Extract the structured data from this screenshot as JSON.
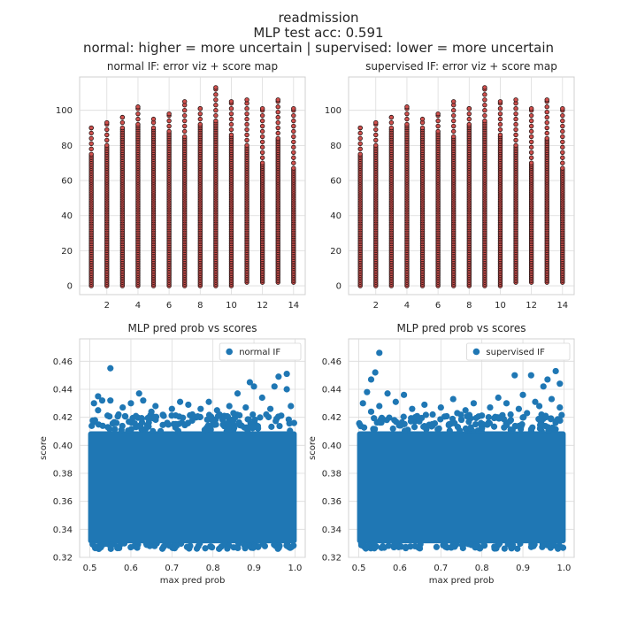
{
  "figure": {
    "suptitle_lines": [
      "readmission",
      "MLP test acc: 0.591",
      "normal: higher = more uncertain | supervised: lower = more uncertain"
    ]
  },
  "colors": {
    "scatter_fill": "#d0504d",
    "scatter_edge": "#2a1414",
    "blue": "#1f77b4"
  },
  "chart_data": [
    {
      "type": "scatter",
      "title": "normal IF: error viz + score map",
      "xlabel": "",
      "ylabel": "",
      "xlim": [
        0.25,
        14.75
      ],
      "ylim": [
        -5,
        119
      ],
      "xticks": [
        2,
        4,
        6,
        8,
        10,
        12,
        14
      ],
      "yticks": [
        0,
        20,
        40,
        60,
        80,
        100
      ],
      "grid": true,
      "columns": [
        {
          "x": 1,
          "y_min": 0,
          "y_dense_max": 75,
          "y_max": 90
        },
        {
          "x": 2,
          "y_min": 0,
          "y_dense_max": 80,
          "y_max": 93
        },
        {
          "x": 3,
          "y_min": 0,
          "y_dense_max": 90,
          "y_max": 96
        },
        {
          "x": 4,
          "y_min": 0,
          "y_dense_max": 92,
          "y_max": 102
        },
        {
          "x": 5,
          "y_min": 0,
          "y_dense_max": 90,
          "y_max": 95
        },
        {
          "x": 6,
          "y_min": 0,
          "y_dense_max": 88,
          "y_max": 98
        },
        {
          "x": 7,
          "y_min": 0,
          "y_dense_max": 85,
          "y_max": 105
        },
        {
          "x": 8,
          "y_min": 0,
          "y_dense_max": 92,
          "y_max": 101
        },
        {
          "x": 9,
          "y_min": 0,
          "y_dense_max": 94,
          "y_max": 113
        },
        {
          "x": 10,
          "y_min": 0,
          "y_dense_max": 86,
          "y_max": 105
        },
        {
          "x": 11,
          "y_min": 2,
          "y_dense_max": 80,
          "y_max": 106
        },
        {
          "x": 12,
          "y_min": 2,
          "y_dense_max": 70,
          "y_max": 101
        },
        {
          "x": 13,
          "y_min": 2,
          "y_dense_max": 84,
          "y_max": 106
        },
        {
          "x": 14,
          "y_min": 2,
          "y_dense_max": 67,
          "y_max": 101
        }
      ]
    },
    {
      "type": "scatter",
      "title": "supervised IF: error viz + score map",
      "xlabel": "",
      "ylabel": "",
      "xlim": [
        0.25,
        14.75
      ],
      "ylim": [
        -5,
        119
      ],
      "xticks": [
        2,
        4,
        6,
        8,
        10,
        12,
        14
      ],
      "yticks": [
        0,
        20,
        40,
        60,
        80,
        100
      ],
      "grid": true,
      "columns": [
        {
          "x": 1,
          "y_min": 0,
          "y_dense_max": 75,
          "y_max": 90
        },
        {
          "x": 2,
          "y_min": 0,
          "y_dense_max": 80,
          "y_max": 93
        },
        {
          "x": 3,
          "y_min": 0,
          "y_dense_max": 90,
          "y_max": 96
        },
        {
          "x": 4,
          "y_min": 0,
          "y_dense_max": 92,
          "y_max": 102
        },
        {
          "x": 5,
          "y_min": 0,
          "y_dense_max": 90,
          "y_max": 95
        },
        {
          "x": 6,
          "y_min": 0,
          "y_dense_max": 88,
          "y_max": 98
        },
        {
          "x": 7,
          "y_min": 0,
          "y_dense_max": 85,
          "y_max": 105
        },
        {
          "x": 8,
          "y_min": 0,
          "y_dense_max": 92,
          "y_max": 101
        },
        {
          "x": 9,
          "y_min": 0,
          "y_dense_max": 94,
          "y_max": 113
        },
        {
          "x": 10,
          "y_min": 0,
          "y_dense_max": 86,
          "y_max": 105
        },
        {
          "x": 11,
          "y_min": 2,
          "y_dense_max": 80,
          "y_max": 106
        },
        {
          "x": 12,
          "y_min": 2,
          "y_dense_max": 70,
          "y_max": 101
        },
        {
          "x": 13,
          "y_min": 2,
          "y_dense_max": 84,
          "y_max": 106
        },
        {
          "x": 14,
          "y_min": 2,
          "y_dense_max": 67,
          "y_max": 101
        }
      ]
    },
    {
      "type": "scatter",
      "title": "MLP pred prob vs scores",
      "xlabel": "max pred prob",
      "ylabel": "score",
      "xlim": [
        0.475,
        1.025
      ],
      "ylim": [
        0.32,
        0.476
      ],
      "xticks": [
        0.5,
        0.6,
        0.7,
        0.8,
        0.9,
        1.0
      ],
      "xtick_labels": [
        "0.5",
        "0.6",
        "0.7",
        "0.8",
        "0.9",
        "1.0"
      ],
      "yticks": [
        0.32,
        0.34,
        0.36,
        0.38,
        0.4,
        0.42,
        0.44,
        0.46
      ],
      "ytick_labels": [
        "0.32",
        "0.34",
        "0.36",
        "0.38",
        "0.40",
        "0.42",
        "0.44",
        "0.46"
      ],
      "grid": true,
      "legend": {
        "placement": "upper right",
        "entries": [
          "normal IF"
        ]
      },
      "series": [
        {
          "name": "normal IF",
          "dense_region": {
            "x": [
              0.5,
              1.0
            ],
            "y": [
              0.33,
              0.41
            ]
          },
          "points": [
            [
              0.55,
              0.455
            ],
            [
              0.98,
              0.451
            ],
            [
              0.96,
              0.449
            ],
            [
              0.89,
              0.445
            ],
            [
              0.9,
              0.442
            ],
            [
              0.95,
              0.442
            ],
            [
              0.98,
              0.44
            ],
            [
              0.62,
              0.437
            ],
            [
              0.52,
              0.435
            ],
            [
              0.86,
              0.437
            ],
            [
              0.53,
              0.432
            ],
            [
              0.55,
              0.432
            ],
            [
              0.72,
              0.431
            ],
            [
              0.6,
              0.43
            ],
            [
              0.63,
              0.432
            ],
            [
              0.79,
              0.431
            ],
            [
              0.92,
              0.434
            ],
            [
              0.51,
              0.43
            ],
            [
              0.66,
              0.428
            ],
            [
              0.74,
              0.429
            ],
            [
              0.84,
              0.428
            ],
            [
              0.99,
              0.428
            ],
            [
              0.58,
              0.427
            ],
            [
              0.7,
              0.426
            ],
            [
              0.77,
              0.426
            ],
            [
              0.81,
              0.425
            ],
            [
              0.88,
              0.427
            ],
            [
              0.94,
              0.426
            ],
            [
              0.65,
              0.424
            ],
            [
              0.85,
              0.423
            ],
            [
              0.52,
              0.425
            ],
            [
              0.57,
              0.422
            ],
            [
              0.68,
              0.421
            ],
            [
              0.75,
              0.422
            ],
            [
              0.93,
              0.422
            ]
          ]
        }
      ]
    },
    {
      "type": "scatter",
      "title": "MLP pred prob vs scores",
      "xlabel": "max pred prob",
      "ylabel": "score",
      "xlim": [
        0.475,
        1.025
      ],
      "ylim": [
        0.32,
        0.476
      ],
      "xticks": [
        0.5,
        0.6,
        0.7,
        0.8,
        0.9,
        1.0
      ],
      "xtick_labels": [
        "0.5",
        "0.6",
        "0.7",
        "0.8",
        "0.9",
        "1.0"
      ],
      "yticks": [
        0.32,
        0.34,
        0.36,
        0.38,
        0.4,
        0.42,
        0.44,
        0.46
      ],
      "ytick_labels": [
        "0.32",
        "0.34",
        "0.36",
        "0.38",
        "0.40",
        "0.42",
        "0.44",
        "0.46"
      ],
      "grid": true,
      "legend": {
        "placement": "upper right",
        "entries": [
          "supervised IF"
        ]
      },
      "series": [
        {
          "name": "supervised IF",
          "dense_region": {
            "x": [
              0.5,
              1.0
            ],
            "y": [
              0.33,
              0.41
            ]
          },
          "points": [
            [
              0.55,
              0.466
            ],
            [
              0.54,
              0.452
            ],
            [
              0.88,
              0.45
            ],
            [
              0.92,
              0.45
            ],
            [
              0.53,
              0.447
            ],
            [
              0.98,
              0.453
            ],
            [
              0.96,
              0.447
            ],
            [
              0.99,
              0.444
            ],
            [
              0.95,
              0.442
            ],
            [
              0.52,
              0.438
            ],
            [
              0.57,
              0.437
            ],
            [
              0.61,
              0.436
            ],
            [
              0.73,
              0.433
            ],
            [
              0.84,
              0.434
            ],
            [
              0.9,
              0.436
            ],
            [
              0.51,
              0.43
            ],
            [
              0.59,
              0.431
            ],
            [
              0.66,
              0.429
            ],
            [
              0.78,
              0.43
            ],
            [
              0.86,
              0.43
            ],
            [
              0.93,
              0.431
            ],
            [
              0.97,
              0.433
            ],
            [
              0.55,
              0.428
            ],
            [
              0.63,
              0.426
            ],
            [
              0.7,
              0.427
            ],
            [
              0.76,
              0.425
            ],
            [
              0.82,
              0.427
            ],
            [
              0.89,
              0.426
            ],
            [
              0.94,
              0.428
            ],
            [
              0.99,
              0.427
            ],
            [
              0.53,
              0.424
            ],
            [
              0.68,
              0.422
            ],
            [
              0.74,
              0.423
            ],
            [
              0.87,
              0.422
            ],
            [
              0.91,
              0.423
            ]
          ]
        }
      ]
    }
  ]
}
